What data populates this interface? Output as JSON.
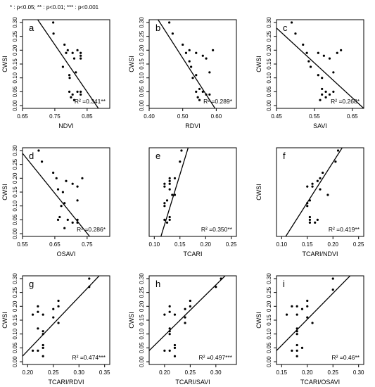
{
  "significance_note": "* : p<0.05;  ** : p<0.01;  *** : p<0.001",
  "chart_data": [
    {
      "type": "scatter",
      "panel": "a",
      "xlabel": "NDVI",
      "ylabel": "CWSI",
      "xlim": [
        0.65,
        0.92
      ],
      "ylim": [
        -0.01,
        0.31
      ],
      "xticks": [
        0.65,
        0.75,
        0.85
      ],
      "xtick_labels": [
        "0.65",
        "0.75",
        "0.85"
      ],
      "yticks": [
        0.0,
        0.05,
        0.1,
        0.15,
        0.2,
        0.25,
        0.3
      ],
      "ytick_labels": [
        "0.00",
        "0.05",
        "0.10",
        "0.15",
        "0.20",
        "0.25",
        "0.30"
      ],
      "r2_text": "R² =0.341**",
      "regression": [
        [
          0.65,
          0.39
        ],
        [
          0.92,
          -0.07
        ]
      ],
      "points": [
        [
          0.745,
          0.3
        ],
        [
          0.746,
          0.26
        ],
        [
          0.78,
          0.22
        ],
        [
          0.79,
          0.2
        ],
        [
          0.785,
          0.19
        ],
        [
          0.775,
          0.14
        ],
        [
          0.795,
          0.11
        ],
        [
          0.796,
          0.1
        ],
        [
          0.805,
          0.19
        ],
        [
          0.81,
          0.17
        ],
        [
          0.82,
          0.2
        ],
        [
          0.83,
          0.19
        ],
        [
          0.83,
          0.17
        ],
        [
          0.83,
          0.18
        ],
        [
          0.815,
          0.12
        ],
        [
          0.82,
          0.05
        ],
        [
          0.83,
          0.04
        ],
        [
          0.83,
          0.05
        ],
        [
          0.795,
          0.05
        ],
        [
          0.8,
          0.03
        ],
        [
          0.81,
          0.02
        ],
        [
          0.805,
          0.04
        ]
      ]
    },
    {
      "type": "scatter",
      "panel": "b",
      "xlabel": "RDVI",
      "ylabel": "CWSI",
      "xlim": [
        0.4,
        0.66
      ],
      "ylim": [
        -0.01,
        0.31
      ],
      "xticks": [
        0.4,
        0.5,
        0.6
      ],
      "xtick_labels": [
        "0.40",
        "0.50",
        "0.60"
      ],
      "yticks": [
        0.0,
        0.05,
        0.1,
        0.15,
        0.2,
        0.25,
        0.3
      ],
      "ytick_labels": [
        "0.00",
        "0.05",
        "0.10",
        "0.15",
        "0.20",
        "0.25",
        "0.30"
      ],
      "r2_text": "R² =0.289*",
      "regression": [
        [
          0.4,
          0.36
        ],
        [
          0.66,
          -0.13
        ]
      ],
      "points": [
        [
          0.46,
          0.3
        ],
        [
          0.47,
          0.26
        ],
        [
          0.5,
          0.22
        ],
        [
          0.52,
          0.2
        ],
        [
          0.51,
          0.19
        ],
        [
          0.52,
          0.16
        ],
        [
          0.525,
          0.14
        ],
        [
          0.54,
          0.19
        ],
        [
          0.56,
          0.18
        ],
        [
          0.57,
          0.17
        ],
        [
          0.59,
          0.2
        ],
        [
          0.53,
          0.1
        ],
        [
          0.54,
          0.11
        ],
        [
          0.58,
          0.12
        ],
        [
          0.55,
          0.06
        ],
        [
          0.56,
          0.05
        ],
        [
          0.57,
          0.04
        ],
        [
          0.58,
          0.04
        ],
        [
          0.545,
          0.03
        ],
        [
          0.55,
          0.02
        ],
        [
          0.54,
          0.05
        ]
      ]
    },
    {
      "type": "scatter",
      "panel": "c",
      "xlabel": "SAVI",
      "ylabel": "CWSI",
      "xlim": [
        0.45,
        0.68
      ],
      "ylim": [
        -0.01,
        0.31
      ],
      "xticks": [
        0.45,
        0.55,
        0.65
      ],
      "xtick_labels": [
        "0.45",
        "0.55",
        "0.65"
      ],
      "yticks": [
        0.0,
        0.05,
        0.1,
        0.15,
        0.2,
        0.25,
        0.3
      ],
      "ytick_labels": [
        "0.00",
        "0.05",
        "0.10",
        "0.15",
        "0.20",
        "0.25",
        "0.30"
      ],
      "r2_text": "R² =0.268*",
      "regression": [
        [
          0.45,
          0.28
        ],
        [
          0.68,
          -0.01
        ]
      ],
      "points": [
        [
          0.49,
          0.3
        ],
        [
          0.5,
          0.26
        ],
        [
          0.52,
          0.22
        ],
        [
          0.53,
          0.19
        ],
        [
          0.535,
          0.16
        ],
        [
          0.54,
          0.14
        ],
        [
          0.56,
          0.19
        ],
        [
          0.575,
          0.18
        ],
        [
          0.59,
          0.17
        ],
        [
          0.61,
          0.19
        ],
        [
          0.62,
          0.2
        ],
        [
          0.6,
          0.12
        ],
        [
          0.56,
          0.11
        ],
        [
          0.57,
          0.1
        ],
        [
          0.57,
          0.06
        ],
        [
          0.58,
          0.05
        ],
        [
          0.59,
          0.04
        ],
        [
          0.6,
          0.05
        ],
        [
          0.58,
          0.03
        ],
        [
          0.565,
          0.02
        ],
        [
          0.57,
          0.04
        ]
      ]
    },
    {
      "type": "scatter",
      "panel": "d",
      "xlabel": "OSAVI",
      "ylabel": "CWSI",
      "xlim": [
        0.55,
        0.82
      ],
      "ylim": [
        -0.01,
        0.31
      ],
      "xticks": [
        0.55,
        0.65,
        0.75
      ],
      "xtick_labels": [
        "0.55",
        "0.65",
        "0.75"
      ],
      "yticks": [
        0.0,
        0.05,
        0.1,
        0.15,
        0.2,
        0.25,
        0.3
      ],
      "ytick_labels": [
        "0.00",
        "0.05",
        "0.10",
        "0.15",
        "0.20",
        "0.25",
        "0.30"
      ],
      "r2_text": "R² =0.286*",
      "regression": [
        [
          0.55,
          0.29
        ],
        [
          0.82,
          -0.1
        ]
      ],
      "points": [
        [
          0.6,
          0.3
        ],
        [
          0.61,
          0.26
        ],
        [
          0.645,
          0.22
        ],
        [
          0.655,
          0.2
        ],
        [
          0.66,
          0.16
        ],
        [
          0.675,
          0.15
        ],
        [
          0.685,
          0.19
        ],
        [
          0.705,
          0.18
        ],
        [
          0.72,
          0.17
        ],
        [
          0.735,
          0.2
        ],
        [
          0.67,
          0.1
        ],
        [
          0.68,
          0.11
        ],
        [
          0.72,
          0.12
        ],
        [
          0.665,
          0.06
        ],
        [
          0.69,
          0.05
        ],
        [
          0.705,
          0.04
        ],
        [
          0.72,
          0.05
        ],
        [
          0.68,
          0.02
        ],
        [
          0.66,
          0.05
        ],
        [
          0.72,
          0.04
        ]
      ]
    },
    {
      "type": "scatter",
      "panel": "e",
      "xlabel": "TCARI",
      "ylabel": "",
      "xlim": [
        0.09,
        0.26
      ],
      "ylim": [
        -0.01,
        0.31
      ],
      "xticks": [
        0.1,
        0.15,
        0.2,
        0.25
      ],
      "xtick_labels": [
        "0.10",
        "0.15",
        "0.20",
        "0.25"
      ],
      "yticks": [],
      "ytick_labels": [],
      "r2_text": "R² =0.350**",
      "regression": [
        [
          0.113,
          -0.01
        ],
        [
          0.166,
          0.31
        ]
      ],
      "points": [
        [
          0.153,
          0.3
        ],
        [
          0.15,
          0.26
        ],
        [
          0.14,
          0.2
        ],
        [
          0.13,
          0.2
        ],
        [
          0.13,
          0.19
        ],
        [
          0.12,
          0.18
        ],
        [
          0.12,
          0.17
        ],
        [
          0.13,
          0.18
        ],
        [
          0.13,
          0.16
        ],
        [
          0.135,
          0.14
        ],
        [
          0.12,
          0.11
        ],
        [
          0.12,
          0.1
        ],
        [
          0.125,
          0.12
        ],
        [
          0.13,
          0.05
        ],
        [
          0.125,
          0.04
        ],
        [
          0.13,
          0.06
        ],
        [
          0.14,
          0.14
        ],
        [
          0.12,
          0.05
        ]
      ]
    },
    {
      "type": "scatter",
      "panel": "f",
      "xlabel": "TCARI/NDVI",
      "ylabel": "CWSI",
      "xlim": [
        0.09,
        0.26
      ],
      "ylim": [
        -0.01,
        0.31
      ],
      "xticks": [
        0.1,
        0.15,
        0.2,
        0.25
      ],
      "xtick_labels": [
        "0.10",
        "0.15",
        "0.20",
        "0.25"
      ],
      "yticks": [],
      "ytick_labels": [],
      "r2_text": "R² =0.419**",
      "regression": [
        [
          0.108,
          -0.01
        ],
        [
          0.218,
          0.31
        ]
      ],
      "points": [
        [
          0.21,
          0.3
        ],
        [
          0.205,
          0.26
        ],
        [
          0.18,
          0.22
        ],
        [
          0.175,
          0.2
        ],
        [
          0.17,
          0.19
        ],
        [
          0.16,
          0.18
        ],
        [
          0.15,
          0.17
        ],
        [
          0.16,
          0.17
        ],
        [
          0.175,
          0.16
        ],
        [
          0.19,
          0.14
        ],
        [
          0.155,
          0.12
        ],
        [
          0.15,
          0.11
        ],
        [
          0.15,
          0.1
        ],
        [
          0.155,
          0.06
        ],
        [
          0.155,
          0.05
        ],
        [
          0.165,
          0.04
        ],
        [
          0.155,
          0.04
        ],
        [
          0.17,
          0.05
        ]
      ]
    },
    {
      "type": "scatter",
      "panel": "g",
      "xlabel": "TCARI/RDVI",
      "ylabel": "CWSI",
      "xlim": [
        0.19,
        0.36
      ],
      "ylim": [
        -0.01,
        0.31
      ],
      "xticks": [
        0.2,
        0.25,
        0.3,
        0.35
      ],
      "xtick_labels": [
        "0.20",
        "0.25",
        "0.30",
        "0.35"
      ],
      "yticks": [
        0.0,
        0.05,
        0.1,
        0.15,
        0.2,
        0.25,
        0.3
      ],
      "ytick_labels": [
        "0.00",
        "0.05",
        "0.10",
        "0.15",
        "0.20",
        "0.25",
        "0.30"
      ],
      "r2_text": "R² =0.474***",
      "regression": [
        [
          0.19,
          0.02
        ],
        [
          0.36,
          0.35
        ]
      ],
      "points": [
        [
          0.32,
          0.3
        ],
        [
          0.32,
          0.27
        ],
        [
          0.26,
          0.22
        ],
        [
          0.26,
          0.2
        ],
        [
          0.25,
          0.19
        ],
        [
          0.22,
          0.2
        ],
        [
          0.21,
          0.17
        ],
        [
          0.22,
          0.18
        ],
        [
          0.23,
          0.17
        ],
        [
          0.25,
          0.16
        ],
        [
          0.26,
          0.14
        ],
        [
          0.22,
          0.12
        ],
        [
          0.23,
          0.11
        ],
        [
          0.23,
          0.1
        ],
        [
          0.23,
          0.06
        ],
        [
          0.21,
          0.04
        ],
        [
          0.22,
          0.04
        ],
        [
          0.23,
          0.05
        ],
        [
          0.23,
          0.02
        ]
      ]
    },
    {
      "type": "scatter",
      "panel": "h",
      "xlabel": "TCARI/SAVI",
      "ylabel": "CWSI",
      "xlim": [
        0.17,
        0.34
      ],
      "ylim": [
        -0.01,
        0.31
      ],
      "xticks": [
        0.2,
        0.25,
        0.3
      ],
      "xtick_labels": [
        "0.20",
        "0.25",
        "0.30"
      ],
      "yticks": [
        0.0,
        0.05,
        0.1,
        0.15,
        0.2,
        0.25,
        0.3
      ],
      "ytick_labels": [
        "0.00",
        "0.05",
        "0.10",
        "0.15",
        "0.20",
        "0.25",
        "0.30"
      ],
      "r2_text": "R² =0.497***",
      "regression": [
        [
          0.17,
          0.04
        ],
        [
          0.34,
          0.35
        ]
      ],
      "points": [
        [
          0.31,
          0.3
        ],
        [
          0.3,
          0.27
        ],
        [
          0.25,
          0.22
        ],
        [
          0.25,
          0.2
        ],
        [
          0.24,
          0.19
        ],
        [
          0.21,
          0.2
        ],
        [
          0.2,
          0.17
        ],
        [
          0.21,
          0.18
        ],
        [
          0.22,
          0.17
        ],
        [
          0.24,
          0.16
        ],
        [
          0.24,
          0.14
        ],
        [
          0.21,
          0.12
        ],
        [
          0.21,
          0.11
        ],
        [
          0.21,
          0.1
        ],
        [
          0.22,
          0.06
        ],
        [
          0.2,
          0.04
        ],
        [
          0.21,
          0.04
        ],
        [
          0.22,
          0.05
        ],
        [
          0.22,
          0.02
        ]
      ]
    },
    {
      "type": "scatter",
      "panel": "i",
      "xlabel": "TCARI/OSAVI",
      "ylabel": "CWSI",
      "xlim": [
        0.14,
        0.31
      ],
      "ylim": [
        -0.01,
        0.31
      ],
      "xticks": [
        0.15,
        0.2,
        0.25,
        0.3
      ],
      "xtick_labels": [
        "0.15",
        "0.20",
        "0.25",
        "0.30"
      ],
      "yticks": [
        0.0,
        0.05,
        0.1,
        0.15,
        0.2,
        0.25,
        0.3
      ],
      "ytick_labels": [
        "0.00",
        "0.05",
        "0.10",
        "0.15",
        "0.20",
        "0.25",
        "0.30"
      ],
      "r2_text": "R² =0.46**",
      "regression": [
        [
          0.14,
          0.04
        ],
        [
          0.31,
          0.36
        ]
      ],
      "points": [
        [
          0.25,
          0.3
        ],
        [
          0.25,
          0.26
        ],
        [
          0.2,
          0.22
        ],
        [
          0.2,
          0.2
        ],
        [
          0.19,
          0.19
        ],
        [
          0.17,
          0.2
        ],
        [
          0.16,
          0.17
        ],
        [
          0.18,
          0.2
        ],
        [
          0.18,
          0.17
        ],
        [
          0.2,
          0.16
        ],
        [
          0.21,
          0.14
        ],
        [
          0.18,
          0.12
        ],
        [
          0.18,
          0.11
        ],
        [
          0.18,
          0.1
        ],
        [
          0.18,
          0.06
        ],
        [
          0.17,
          0.04
        ],
        [
          0.18,
          0.04
        ],
        [
          0.19,
          0.05
        ],
        [
          0.18,
          0.02
        ]
      ]
    }
  ]
}
